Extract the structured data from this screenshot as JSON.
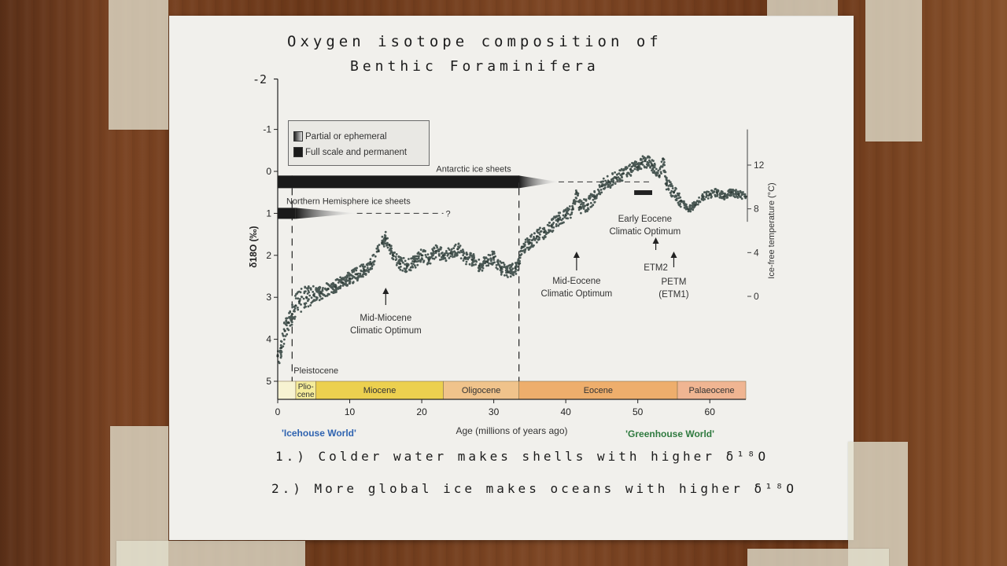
{
  "handwritten": {
    "title_line1": "Oxygen isotope composition of",
    "title_line2": "Benthic Foraminifera",
    "note1": "1.) Colder water makes shells with higher δ¹⁸O",
    "note2": "2.) More global ice makes oceans with higher δ¹⁸O",
    "y_top_extension": "-2"
  },
  "legend": {
    "partial": "Partial or ephemeral",
    "full": "Full scale and permanent"
  },
  "chart_data": {
    "type": "scatter",
    "xlabel": "Age (millions of years ago)",
    "ylabel": "δ18O (‰)",
    "y2label": "Ice-free temperature (°C)",
    "xlim": [
      0,
      65
    ],
    "ylim": [
      5,
      -1
    ],
    "xticks": [
      0,
      10,
      20,
      30,
      40,
      50,
      60
    ],
    "yticks": [
      -1,
      0,
      1,
      2,
      3,
      4,
      5
    ],
    "y2ticks": [
      0,
      4,
      8,
      12
    ],
    "series": [
      {
        "x": [
          0,
          0.5,
          1,
          1.5,
          2,
          2.5,
          3,
          4,
          5,
          6,
          7,
          8,
          9,
          10,
          11,
          12,
          13,
          14,
          14.5,
          15,
          15.5,
          16,
          17,
          18,
          19,
          20,
          21,
          22,
          23,
          24,
          25,
          26,
          27,
          28,
          29,
          30,
          31,
          32,
          33,
          33.5,
          34,
          35,
          36,
          37,
          38,
          39,
          40,
          41,
          41.5,
          42,
          43,
          44,
          45,
          46,
          47,
          48,
          49,
          50,
          50.5,
          51,
          52,
          53,
          53.5,
          54,
          55,
          56,
          57,
          58,
          59,
          60,
          61,
          62,
          63,
          64,
          65
        ],
        "y": [
          4.4,
          4.2,
          3.8,
          3.6,
          3.4,
          3.2,
          3.1,
          3.0,
          2.95,
          2.9,
          2.8,
          2.75,
          2.65,
          2.55,
          2.45,
          2.35,
          2.2,
          1.9,
          1.7,
          1.6,
          1.75,
          2.0,
          2.2,
          2.25,
          2.15,
          2.0,
          2.1,
          1.9,
          2.0,
          1.95,
          1.85,
          2.05,
          2.1,
          2.25,
          2.15,
          2.05,
          2.3,
          2.4,
          2.3,
          2.2,
          1.8,
          1.7,
          1.55,
          1.45,
          1.3,
          1.15,
          1.05,
          0.9,
          0.5,
          0.85,
          0.8,
          0.6,
          0.35,
          0.25,
          0.15,
          0.05,
          -0.05,
          -0.1,
          -0.2,
          -0.25,
          -0.15,
          0.1,
          -0.3,
          0.3,
          0.5,
          0.7,
          0.9,
          0.8,
          0.6,
          0.55,
          0.5,
          0.6,
          0.5,
          0.55,
          0.6
        ]
      }
    ],
    "ice_sheets": [
      {
        "label": "Antarctic ice sheets",
        "full_range": [
          0,
          33.5
        ],
        "partial_range": [
          33.5,
          39
        ],
        "dashed_to": 52
      },
      {
        "label": "Northern Hemisphere ice sheets",
        "full_range": [
          0,
          2.5
        ],
        "partial_range": [
          2.5,
          11
        ],
        "dashed_to": 23,
        "query": "?"
      }
    ],
    "annotations": [
      {
        "label_line1": "Pleistocene",
        "label_line2": "",
        "x": 2
      },
      {
        "label_line1": "Mid-Miocene",
        "label_line2": "Climatic Optimum",
        "x": 15
      },
      {
        "label_line1": "Mid-Eocene",
        "label_line2": "Climatic Optimum",
        "x": 41.5
      },
      {
        "label_line1": "Early Eocene",
        "label_line2": "Climatic Optimum",
        "x": 51
      },
      {
        "label_line1": "ETM2",
        "label_line2": "",
        "x": 52.5
      },
      {
        "label_line1": "PETM",
        "label_line2": "(ETM1)",
        "x": 55
      }
    ],
    "epochs": [
      {
        "name_line1": "Plio-",
        "name_line2": "cene",
        "start": 2.5,
        "end": 5.3,
        "color": "#f5ec9a"
      },
      {
        "name_line1": "Miocene",
        "name_line2": "",
        "start": 5.3,
        "end": 23,
        "color": "#ecd04f"
      },
      {
        "name_line1": "Oligocene",
        "name_line2": "",
        "start": 23,
        "end": 33.5,
        "color": "#f0c38b"
      },
      {
        "name_line1": "Eocene",
        "name_line2": "",
        "start": 33.5,
        "end": 55.5,
        "color": "#eeae6c"
      },
      {
        "name_line1": "Palaeocene",
        "name_line2": "",
        "start": 55.5,
        "end": 65,
        "color": "#f0b592"
      }
    ],
    "world_labels": {
      "icehouse": "'Icehouse World'",
      "greenhouse": "'Greenhouse World'"
    },
    "colors": {
      "data": "#4a5854",
      "ice": "#1a1a1a",
      "icehouse": "#2f63b0",
      "greenhouse": "#2f7a3f"
    }
  }
}
